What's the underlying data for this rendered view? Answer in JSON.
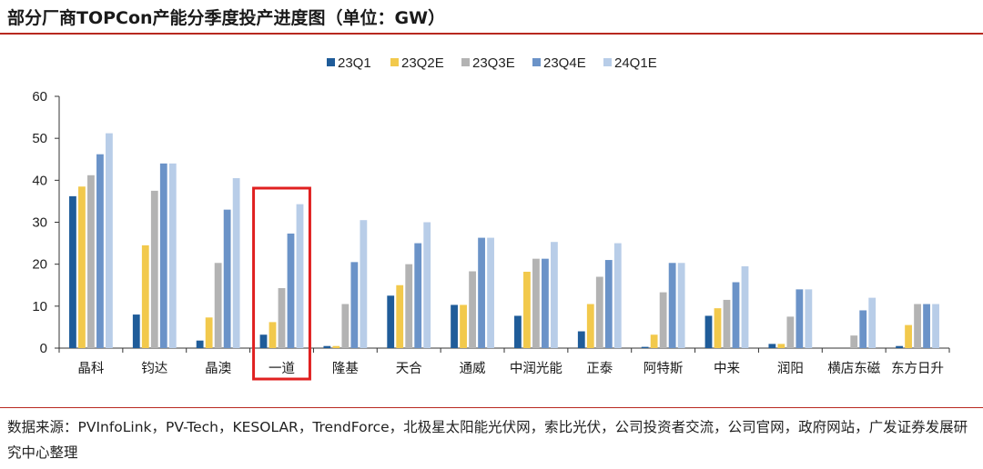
{
  "title": "部分厂商TOPCon产能分季度投产进度图（单位：GW）",
  "source": "数据来源：PVInfoLink，PV-Tech，KESOLAR，TrendForce，北极星太阳能光伏网，索比光伏，公司投资者交流，公司官网，政府网站，广发证券发展研究中心整理",
  "chart_data": {
    "type": "bar",
    "categories": [
      "晶科",
      "钧达",
      "晶澳",
      "一道",
      "隆基",
      "天合",
      "通威",
      "中润光能",
      "正泰",
      "阿特斯",
      "中来",
      "润阳",
      "横店东磁",
      "东方日升"
    ],
    "series": [
      {
        "name": "23Q1",
        "color": "#1f5c99",
        "values": [
          36.2,
          8.0,
          1.8,
          3.2,
          0.5,
          12.5,
          10.3,
          7.7,
          4.0,
          0.3,
          7.7,
          1.0,
          0.0,
          0.5
        ]
      },
      {
        "name": "23Q2E",
        "color": "#f2c94c",
        "values": [
          38.5,
          24.5,
          7.3,
          6.2,
          0.5,
          15.0,
          10.3,
          18.2,
          10.5,
          3.2,
          9.5,
          1.0,
          0.0,
          5.5
        ]
      },
      {
        "name": "23Q3E",
        "color": "#b3b3b3",
        "values": [
          41.2,
          37.5,
          20.3,
          14.3,
          10.5,
          20.0,
          18.3,
          21.3,
          17.0,
          13.3,
          11.5,
          7.5,
          3.0,
          10.5
        ]
      },
      {
        "name": "23Q4E",
        "color": "#6b93c8",
        "values": [
          46.2,
          44.0,
          33.0,
          27.3,
          20.5,
          25.0,
          26.3,
          21.3,
          21.0,
          20.3,
          15.7,
          14.0,
          9.0,
          10.5
        ]
      },
      {
        "name": "24Q1E",
        "color": "#b8cde8",
        "values": [
          51.2,
          44.0,
          40.5,
          34.3,
          30.5,
          30.0,
          26.3,
          25.3,
          25.0,
          20.3,
          19.5,
          14.0,
          12.0,
          10.5
        ]
      }
    ],
    "ylim": [
      0,
      60
    ],
    "yticks": [
      0,
      10,
      20,
      30,
      40,
      50,
      60
    ],
    "legend_position": "top-center",
    "highlight_category": "一道",
    "highlight_color": "#e02020",
    "grid": false
  }
}
